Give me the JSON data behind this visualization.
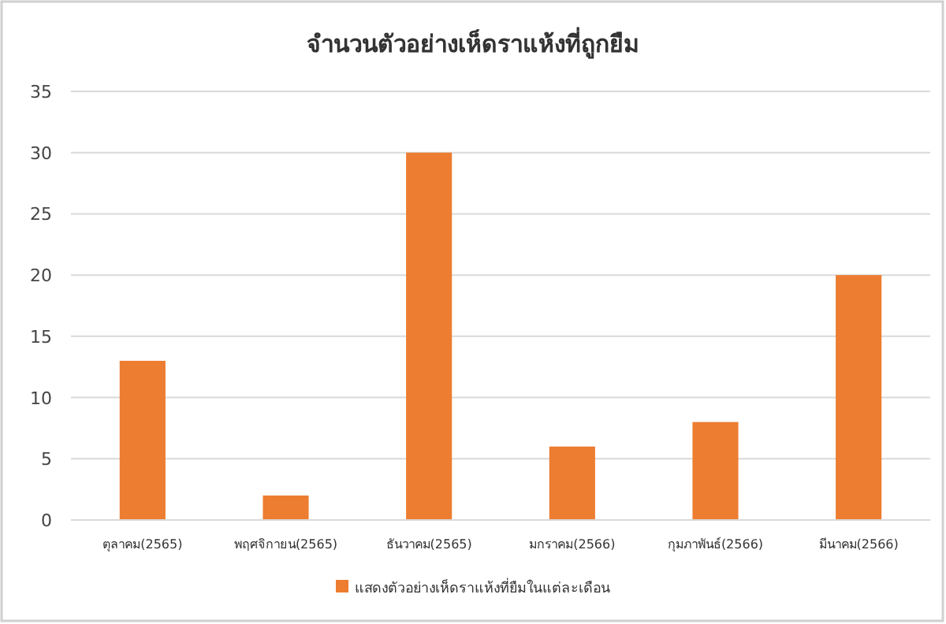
{
  "chart_data": {
    "type": "bar",
    "title": "จำนวนตัวอย่างเห็ดราแห้งที่ถูกยืม",
    "categories": [
      "ตุลาคม(2565)",
      "พฤศจิกายน(2565)",
      "ธันวาคม(2565)",
      "มกราคม(2566)",
      "กุมภาพันธ์(2566)",
      "มีนาคม(2566)"
    ],
    "series": [
      {
        "name": "แสดงตัวอย่างเห็ดราแห้งที่ยืมในแต่ละเดือน",
        "color": "#ed7d31",
        "values": [
          13,
          2,
          30,
          6,
          8,
          20
        ]
      }
    ],
    "ylim": [
      0,
      35
    ],
    "yticks": [
      0,
      5,
      10,
      15,
      20,
      25,
      30,
      35
    ],
    "grid": "y",
    "legend": "bottom"
  }
}
